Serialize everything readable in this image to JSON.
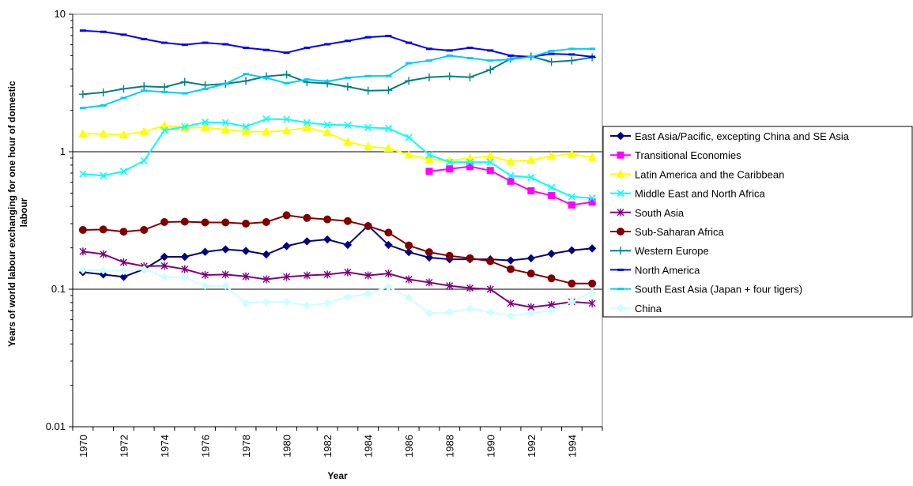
{
  "chart_data": {
    "type": "line",
    "title": "",
    "xlabel": "Year",
    "ylabel": "Years of world labour exchanging for one hour of domestic labour",
    "ylabel_lines": [
      "Years of world labour exchanging for one hour of domestic",
      "labour"
    ],
    "yscale": "log",
    "ylim": [
      0.01,
      10
    ],
    "y_ticks": [
      0.01,
      0.1,
      1,
      10
    ],
    "y_tick_labels": [
      "0.01",
      "0.1",
      "1",
      "10"
    ],
    "x": [
      1970,
      1971,
      1972,
      1973,
      1974,
      1975,
      1976,
      1977,
      1978,
      1979,
      1980,
      1981,
      1982,
      1983,
      1984,
      1985,
      1986,
      1987,
      1988,
      1989,
      1990,
      1991,
      1992,
      1993,
      1994,
      1995
    ],
    "x_tick_labels": [
      "1970",
      "1972",
      "1974",
      "1976",
      "1978",
      "1980",
      "1982",
      "1984",
      "1986",
      "1988",
      "1990",
      "1992",
      "1994"
    ],
    "grid": "horizontal major gridlines",
    "legend_position": "right",
    "series": [
      {
        "name": "East Asia/Pacific, excepting China and SE Asia",
        "color": "#000080",
        "marker": "diamond",
        "values": [
          0.133,
          0.128,
          0.123,
          0.14,
          0.172,
          0.172,
          0.187,
          0.195,
          0.19,
          0.179,
          0.206,
          0.223,
          0.23,
          0.21,
          0.29,
          0.21,
          0.186,
          0.17,
          0.165,
          0.165,
          0.165,
          0.162,
          0.168,
          0.181,
          0.192,
          0.198
        ]
      },
      {
        "name": "Transitional Economies",
        "color": "#FF00FF",
        "marker": "square",
        "values": [
          null,
          null,
          null,
          null,
          null,
          null,
          null,
          null,
          null,
          null,
          null,
          null,
          null,
          null,
          null,
          null,
          null,
          0.72,
          0.75,
          0.78,
          0.73,
          0.61,
          0.52,
          0.48,
          0.41,
          0.43
        ]
      },
      {
        "name": "Latin America and the Caribbean",
        "color": "#FFFF00",
        "marker": "triangle",
        "values": [
          1.35,
          1.35,
          1.33,
          1.4,
          1.55,
          1.5,
          1.5,
          1.45,
          1.4,
          1.4,
          1.42,
          1.5,
          1.38,
          1.18,
          1.09,
          1.06,
          0.95,
          0.88,
          0.86,
          0.9,
          0.93,
          0.85,
          0.87,
          0.93,
          0.96,
          0.91
        ]
      },
      {
        "name": "Middle East and North Africa",
        "color": "#00FFFF",
        "marker": "x",
        "values": [
          0.69,
          0.67,
          0.72,
          0.86,
          1.43,
          1.52,
          1.64,
          1.63,
          1.52,
          1.73,
          1.72,
          1.63,
          1.57,
          1.56,
          1.5,
          1.48,
          1.27,
          0.95,
          0.84,
          0.84,
          0.84,
          0.67,
          0.65,
          0.55,
          0.47,
          0.46
        ]
      },
      {
        "name": "South Asia",
        "color": "#800080",
        "marker": "asterisk",
        "values": [
          0.188,
          0.18,
          0.157,
          0.147,
          0.148,
          0.14,
          0.127,
          0.128,
          0.124,
          0.118,
          0.123,
          0.126,
          0.128,
          0.133,
          0.126,
          0.13,
          0.118,
          0.112,
          0.106,
          0.102,
          0.1,
          0.079,
          0.074,
          0.077,
          0.081,
          0.079
        ]
      },
      {
        "name": "Sub-Saharan Africa",
        "color": "#800000",
        "marker": "circle",
        "values": [
          0.27,
          0.272,
          0.262,
          0.27,
          0.308,
          0.31,
          0.306,
          0.306,
          0.3,
          0.308,
          0.345,
          0.33,
          0.322,
          0.313,
          0.288,
          0.258,
          0.208,
          0.186,
          0.175,
          0.168,
          0.16,
          0.14,
          0.13,
          0.12,
          0.11,
          0.11
        ]
      },
      {
        "name": "Western Europe",
        "color": "#008080",
        "marker": "plus",
        "values": [
          2.62,
          2.7,
          2.87,
          2.99,
          2.95,
          3.22,
          3.05,
          3.12,
          3.27,
          3.53,
          3.64,
          3.2,
          3.14,
          2.97,
          2.78,
          2.8,
          3.28,
          3.48,
          3.54,
          3.48,
          3.95,
          4.75,
          4.93,
          4.5,
          4.6,
          4.85
        ]
      },
      {
        "name": "North America",
        "color": "#0000FF",
        "marker": "dash",
        "values": [
          7.6,
          7.45,
          7.1,
          6.6,
          6.2,
          6.0,
          6.2,
          6.05,
          5.7,
          5.5,
          5.25,
          5.7,
          6.05,
          6.4,
          6.8,
          6.95,
          6.2,
          5.6,
          5.45,
          5.7,
          5.45,
          5.0,
          4.9,
          5.15,
          5.1,
          4.9
        ]
      },
      {
        "name": "South East Asia (Japan + four tigers)",
        "color": "#00CCFF",
        "marker": "dash",
        "values": [
          2.08,
          2.17,
          2.46,
          2.78,
          2.72,
          2.66,
          2.86,
          3.12,
          3.67,
          3.45,
          3.15,
          3.35,
          3.25,
          3.45,
          3.55,
          3.56,
          4.4,
          4.6,
          5.0,
          4.8,
          4.6,
          4.7,
          4.9,
          5.4,
          5.6,
          5.6
        ]
      },
      {
        "name": "China",
        "color": "#CCFFFF",
        "marker": "diamond",
        "values": [
          0.138,
          0.137,
          0.135,
          0.14,
          0.123,
          0.122,
          0.106,
          0.106,
          0.079,
          0.081,
          0.081,
          0.076,
          0.079,
          0.088,
          0.093,
          0.104,
          0.087,
          0.067,
          0.068,
          0.072,
          0.068,
          0.064,
          0.067,
          0.07,
          0.081,
          0.095
        ]
      }
    ]
  }
}
